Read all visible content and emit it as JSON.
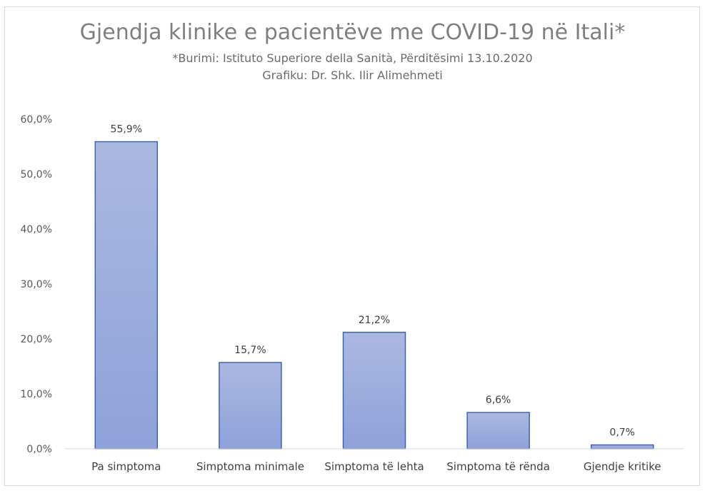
{
  "chart_data": {
    "type": "bar",
    "title": "Gjendja klinike e pacientëve me COVID-19 në Itali*",
    "subtitle_lines": [
      "*Burimi: Istituto Superiore della Sanità, Përditësimi 13.10.2020",
      "Grafiku: Dr. Shk. Ilir Alimehmeti"
    ],
    "categories": [
      "Pa simptoma",
      "Simptoma minimale",
      "Simptoma të lehta",
      "Simptoma të rënda",
      "Gjendje kritike"
    ],
    "values": [
      55.9,
      15.7,
      21.2,
      6.6,
      0.7
    ],
    "data_labels": [
      "55,9%",
      "15,7%",
      "21,2%",
      "6,6%",
      "0,7%"
    ],
    "ylim": [
      0,
      60
    ],
    "y_ticks": [
      0,
      10,
      20,
      30,
      40,
      50,
      60
    ],
    "y_tick_labels": [
      "0,0%",
      "10,0%",
      "20,0%",
      "30,0%",
      "40,0%",
      "50,0%",
      "60,0%"
    ],
    "xlabel": "",
    "ylabel": "",
    "grid": false,
    "colors": {
      "bar_fill_top": "#abb8e0",
      "bar_fill_bottom": "#8ea2da",
      "bar_border": "#3d63b3"
    }
  }
}
